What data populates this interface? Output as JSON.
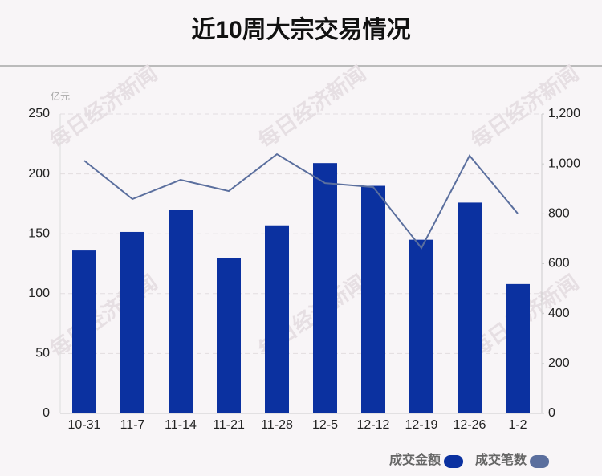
{
  "chart_data": {
    "type": "bar-line",
    "title": "近10周大宗交易情况",
    "y_unit": "亿元",
    "watermark": "每日经济新闻",
    "categories": [
      "10-31",
      "11-7",
      "11-14",
      "11-21",
      "11-28",
      "12-5",
      "12-12",
      "12-19",
      "12-26",
      "1-2"
    ],
    "series": [
      {
        "name": "成交金额",
        "color": "#0b31a0",
        "type": "bar",
        "values": [
          136,
          151.5,
          170,
          130,
          157,
          209,
          190,
          145,
          176,
          108
        ]
      },
      {
        "name": "成交笔数",
        "color": "#5b6f9e",
        "type": "line",
        "axis": "y2",
        "values": [
          1013,
          859,
          936,
          891,
          1039,
          923,
          907,
          663,
          1033,
          801
        ]
      }
    ],
    "ylim": [
      0,
      250
    ],
    "yticks": [
      0,
      50,
      100,
      150,
      200,
      250
    ],
    "y2lim": [
      0,
      1200
    ],
    "y2ticks": [
      0,
      200,
      400,
      600,
      800,
      {
        "value": 1000,
        "label": "1,000"
      },
      {
        "value": 1200,
        "label": "1,200"
      }
    ],
    "grid": true
  }
}
